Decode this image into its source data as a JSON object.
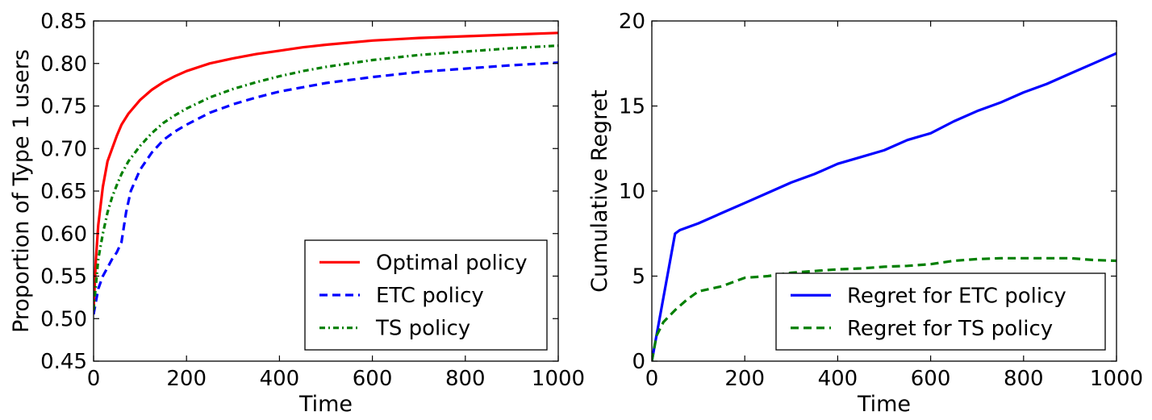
{
  "chart_data": [
    {
      "type": "line",
      "title": "",
      "xlabel": "Time",
      "ylabel": "Proportion of Type 1 users",
      "xlim": [
        0,
        1000
      ],
      "ylim": [
        0.45,
        0.85
      ],
      "xticks": [
        0,
        200,
        400,
        600,
        800,
        1000
      ],
      "xtick_labels": [
        "0",
        "200",
        "400",
        "600",
        "800",
        "1000"
      ],
      "yticks": [
        0.45,
        0.5,
        0.55,
        0.6,
        0.65,
        0.7,
        0.75,
        0.8,
        0.85
      ],
      "ytick_labels": [
        "0.45",
        "0.50",
        "0.55",
        "0.60",
        "0.65",
        "0.70",
        "0.75",
        "0.80",
        "0.85"
      ],
      "grid": false,
      "legend_position": "lower-right",
      "series": [
        {
          "name": "Optimal policy",
          "color": "#ff0000",
          "style": "solid",
          "x": [
            0,
            5,
            10,
            20,
            30,
            40,
            50,
            60,
            75,
            100,
            125,
            150,
            175,
            200,
            250,
            300,
            350,
            400,
            450,
            500,
            600,
            700,
            800,
            900,
            1000
          ],
          "y": [
            0.51,
            0.57,
            0.61,
            0.655,
            0.685,
            0.7,
            0.715,
            0.728,
            0.741,
            0.757,
            0.769,
            0.778,
            0.785,
            0.791,
            0.8,
            0.806,
            0.811,
            0.815,
            0.819,
            0.822,
            0.827,
            0.83,
            0.832,
            0.834,
            0.836
          ]
        },
        {
          "name": "ETC policy",
          "color": "#0000ff",
          "style": "dashed",
          "x": [
            0,
            10,
            20,
            30,
            40,
            50,
            60,
            70,
            80,
            100,
            125,
            150,
            175,
            200,
            250,
            300,
            350,
            400,
            450,
            500,
            600,
            700,
            800,
            900,
            1000
          ],
          "y": [
            0.505,
            0.535,
            0.55,
            0.56,
            0.57,
            0.578,
            0.59,
            0.625,
            0.65,
            0.675,
            0.695,
            0.71,
            0.72,
            0.728,
            0.742,
            0.752,
            0.76,
            0.767,
            0.772,
            0.777,
            0.784,
            0.79,
            0.794,
            0.798,
            0.801
          ]
        },
        {
          "name": "TS policy",
          "color": "#007f00",
          "style": "dashdot",
          "x": [
            0,
            5,
            10,
            20,
            30,
            40,
            50,
            60,
            75,
            100,
            125,
            150,
            175,
            200,
            250,
            300,
            350,
            400,
            450,
            500,
            600,
            700,
            800,
            900,
            1000
          ],
          "y": [
            0.51,
            0.54,
            0.57,
            0.6,
            0.625,
            0.643,
            0.657,
            0.67,
            0.685,
            0.703,
            0.718,
            0.73,
            0.739,
            0.747,
            0.76,
            0.77,
            0.778,
            0.785,
            0.791,
            0.796,
            0.804,
            0.81,
            0.814,
            0.818,
            0.821
          ]
        }
      ]
    },
    {
      "type": "line",
      "title": "",
      "xlabel": "Time",
      "ylabel": "Cumulative Regret",
      "xlim": [
        0,
        1000
      ],
      "ylim": [
        0,
        20
      ],
      "xticks": [
        0,
        200,
        400,
        600,
        800,
        1000
      ],
      "xtick_labels": [
        "0",
        "200",
        "400",
        "600",
        "800",
        "1000"
      ],
      "yticks": [
        0,
        5,
        10,
        15,
        20
      ],
      "ytick_labels": [
        "0",
        "5",
        "10",
        "15",
        "20"
      ],
      "grid": false,
      "legend_position": "lower-right",
      "series": [
        {
          "name": "Regret for ETC policy",
          "color": "#0000ff",
          "style": "solid",
          "x": [
            0,
            50,
            60,
            100,
            150,
            200,
            250,
            300,
            350,
            400,
            450,
            500,
            550,
            600,
            650,
            700,
            750,
            800,
            850,
            900,
            950,
            1000
          ],
          "y": [
            0,
            7.5,
            7.7,
            8.1,
            8.7,
            9.3,
            9.9,
            10.5,
            11.0,
            11.6,
            12.0,
            12.4,
            13.0,
            13.4,
            14.1,
            14.7,
            15.2,
            15.8,
            16.3,
            16.9,
            17.5,
            18.1
          ]
        },
        {
          "name": "Regret for TS policy",
          "color": "#007f00",
          "style": "dashed",
          "x": [
            0,
            10,
            25,
            50,
            75,
            100,
            150,
            200,
            250,
            300,
            350,
            400,
            450,
            500,
            550,
            600,
            650,
            700,
            750,
            800,
            850,
            900,
            950,
            1000
          ],
          "y": [
            0,
            1.5,
            2.3,
            3.0,
            3.6,
            4.1,
            4.4,
            4.9,
            5.0,
            5.2,
            5.3,
            5.4,
            5.45,
            5.55,
            5.6,
            5.7,
            5.9,
            6.0,
            6.05,
            6.05,
            6.05,
            6.05,
            5.95,
            5.9
          ]
        }
      ]
    }
  ]
}
